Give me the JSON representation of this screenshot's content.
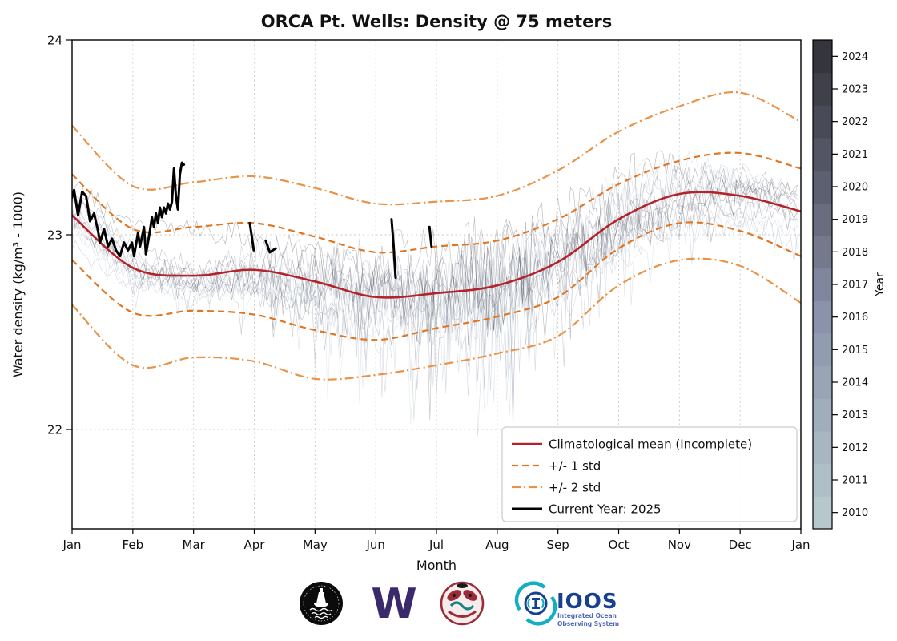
{
  "title": "ORCA Pt. Wells: Density @ 75 meters",
  "chart_data": {
    "type": "line",
    "title": "ORCA Pt. Wells: Density @ 75 meters",
    "xlabel": "Month",
    "ylabel": "Water density (kg/m³ - 1000)",
    "x_ticks": [
      "Jan",
      "Feb",
      "Mar",
      "Apr",
      "May",
      "Jun",
      "Jul",
      "Aug",
      "Sep",
      "Oct",
      "Nov",
      "Dec",
      "Jan"
    ],
    "y_ticks": [
      22,
      23,
      24
    ],
    "ylim": [
      21.49,
      24
    ],
    "grid": true,
    "legend_position": "lower right",
    "legend": [
      "Climatological mean (Incomplete)",
      "+/- 1 std",
      "+/- 2 std",
      "Current Year: 2025"
    ],
    "series": [
      {
        "name": "Climatological mean (Incomplete)",
        "style": "solid",
        "color": "#b3232c",
        "width": 2.6,
        "month_x": [
          0,
          1,
          2,
          3,
          4,
          5,
          6,
          7,
          8,
          9,
          10,
          11,
          12
        ],
        "values": [
          23.1,
          22.83,
          22.79,
          22.82,
          22.76,
          22.68,
          22.7,
          22.74,
          22.86,
          23.08,
          23.21,
          23.2,
          23.12
        ]
      },
      {
        "name": "+1 std",
        "style": "dashed",
        "color": "#e07622",
        "width": 2.2,
        "values": [
          23.31,
          23.03,
          23.04,
          23.06,
          22.99,
          22.91,
          22.94,
          22.97,
          23.08,
          23.26,
          23.38,
          23.42,
          23.34
        ]
      },
      {
        "name": "-1 std",
        "style": "dashed",
        "color": "#e07622",
        "width": 2.2,
        "values": [
          22.87,
          22.6,
          22.61,
          22.59,
          22.51,
          22.46,
          22.52,
          22.58,
          22.68,
          22.93,
          23.06,
          23.02,
          22.89
        ]
      },
      {
        "name": "+2 std",
        "style": "dashdot",
        "color": "#ea9246",
        "width": 2.2,
        "values": [
          23.56,
          23.25,
          23.27,
          23.3,
          23.24,
          23.16,
          23.17,
          23.2,
          23.33,
          23.53,
          23.66,
          23.73,
          23.58
        ]
      },
      {
        "name": "-2 std",
        "style": "dashdot",
        "color": "#ea9246",
        "width": 2.2,
        "values": [
          22.64,
          22.33,
          22.37,
          22.35,
          22.26,
          22.28,
          22.33,
          22.39,
          22.48,
          22.74,
          22.87,
          22.84,
          22.65
        ]
      }
    ],
    "current_year": {
      "name": "Current Year: 2025",
      "color": "#000000",
      "width": 3,
      "segments": [
        [
          [
            1,
            23.19
          ],
          [
            2,
            23.23
          ],
          [
            4,
            23.1
          ],
          [
            6,
            23.22
          ],
          [
            8,
            23.2
          ],
          [
            10,
            23.07
          ],
          [
            12,
            23.11
          ],
          [
            14,
            23.02
          ],
          [
            15,
            22.96
          ],
          [
            17,
            23.03
          ],
          [
            19,
            22.94
          ],
          [
            21,
            22.98
          ],
          [
            23,
            22.92
          ],
          [
            25,
            22.89
          ],
          [
            27,
            22.96
          ],
          [
            29,
            22.92
          ],
          [
            31,
            22.96
          ],
          [
            32,
            22.89
          ],
          [
            34,
            23.01
          ],
          [
            35,
            22.94
          ],
          [
            37,
            23.04
          ],
          [
            38,
            22.9
          ],
          [
            40,
            23.02
          ],
          [
            41,
            23.09
          ],
          [
            42,
            23.04
          ],
          [
            43,
            23.11
          ],
          [
            44,
            23.06
          ],
          [
            45,
            23.14
          ],
          [
            46,
            23.09
          ],
          [
            47,
            23.14
          ],
          [
            48,
            23.11
          ],
          [
            49,
            23.16
          ],
          [
            50,
            23.13
          ],
          [
            51,
            23.17
          ],
          [
            52,
            23.34
          ],
          [
            53,
            23.2
          ],
          [
            54,
            23.13
          ],
          [
            55,
            23.31
          ],
          [
            56,
            23.37
          ],
          [
            57,
            23.36
          ]
        ],
        [
          [
            90,
            23.06
          ],
          [
            91,
            22.99
          ],
          [
            92,
            22.92
          ]
        ],
        [
          [
            98,
            22.97
          ],
          [
            100,
            22.91
          ],
          [
            103,
            22.93
          ]
        ],
        [
          [
            161,
            23.08
          ],
          [
            162,
            22.95
          ],
          [
            163,
            22.78
          ]
        ],
        [
          [
            180,
            23.04
          ],
          [
            181,
            22.94
          ]
        ]
      ]
    },
    "background_years": {
      "years": [
        2010,
        2011,
        2012,
        2013,
        2014,
        2015,
        2016,
        2017,
        2018,
        2019,
        2020,
        2021,
        2022,
        2023,
        2024
      ],
      "colors": [
        "#b6c8cc",
        "#afbfc7",
        "#a7b6c1",
        "#a0aebc",
        "#99a5b6",
        "#919cb1",
        "#8a93ab",
        "#7f869d",
        "#74798e",
        "#696d80",
        "#5d6071",
        "#535564",
        "#494a57",
        "#3f404a",
        "#35353d"
      ],
      "opacity": 0.38
    },
    "colorbar": {
      "label": "Year",
      "ticks": [
        2010,
        2011,
        2012,
        2013,
        2014,
        2015,
        2016,
        2017,
        2018,
        2019,
        2020,
        2021,
        2022,
        2023,
        2024
      ]
    }
  },
  "colors": {
    "grid": "#c9c9c9",
    "spine": "#000000",
    "legend_border": "#cccccc"
  },
  "logos": {
    "orca_buoy": "ORCA buoy seal",
    "uw": {
      "letter": "W"
    },
    "tribal_seal": "tribal seal",
    "ioos": {
      "title": "IOOS",
      "tagline1": "Integrated  Ocean",
      "tagline2": "Observing System"
    }
  }
}
